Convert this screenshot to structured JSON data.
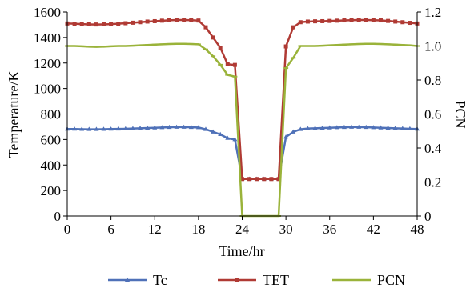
{
  "chart_data": {
    "type": "line",
    "xlabel": "Time/hr",
    "ylabel": "Temperature/K",
    "y2label": "PCN",
    "xlim": [
      0,
      48
    ],
    "ylim": [
      0,
      1600
    ],
    "y2lim": [
      0,
      1.2
    ],
    "x_ticks": [
      0,
      6,
      12,
      18,
      24,
      30,
      36,
      42,
      48
    ],
    "y_ticks": [
      0,
      200,
      400,
      600,
      800,
      1000,
      1200,
      1400,
      1600
    ],
    "y2_ticks": [
      "0",
      "0.2",
      "0.4",
      "0.6",
      "0.8",
      "1.0",
      "1.2"
    ],
    "legend_position": "bottom",
    "grid": false,
    "x": [
      0,
      1,
      2,
      3,
      4,
      5,
      6,
      7,
      8,
      9,
      10,
      11,
      12,
      13,
      14,
      15,
      16,
      17,
      18,
      19,
      20,
      21,
      22,
      23,
      24,
      25,
      26,
      27,
      28,
      29,
      30,
      31,
      32,
      33,
      34,
      35,
      36,
      37,
      38,
      39,
      40,
      41,
      42,
      43,
      44,
      45,
      46,
      47,
      48
    ],
    "series": [
      {
        "name": "Tc",
        "axis": "left",
        "color": "#4f71b8",
        "marker": "triangle",
        "values": [
          682,
          682,
          681,
          680,
          680,
          681,
          682,
          683,
          684,
          686,
          688,
          690,
          692,
          694,
          696,
          697,
          697,
          696,
          694,
          680,
          660,
          640,
          610,
          600,
          290,
          290,
          290,
          290,
          290,
          290,
          620,
          660,
          680,
          686,
          688,
          690,
          692,
          694,
          696,
          697,
          697,
          696,
          694,
          692,
          690,
          688,
          686,
          684,
          682
        ]
      },
      {
        "name": "TET",
        "axis": "left",
        "color": "#b03a34",
        "marker": "square",
        "values": [
          1510,
          1508,
          1505,
          1503,
          1502,
          1503,
          1505,
          1508,
          1512,
          1516,
          1520,
          1525,
          1528,
          1532,
          1535,
          1537,
          1537,
          1536,
          1533,
          1480,
          1400,
          1320,
          1190,
          1185,
          290,
          290,
          290,
          290,
          290,
          290,
          1330,
          1480,
          1520,
          1525,
          1527,
          1528,
          1530,
          1532,
          1534,
          1536,
          1537,
          1537,
          1536,
          1534,
          1530,
          1525,
          1520,
          1515,
          1510
        ]
      },
      {
        "name": "PCN",
        "axis": "right",
        "color": "#9ab33a",
        "marker": "dash",
        "values": [
          1.0,
          1.0,
          0.998,
          0.996,
          0.995,
          0.996,
          0.998,
          1.0,
          1.0,
          1.002,
          1.004,
          1.006,
          1.008,
          1.01,
          1.012,
          1.013,
          1.013,
          1.012,
          1.01,
          0.98,
          0.94,
          0.89,
          0.83,
          0.82,
          0,
          0,
          0,
          0,
          0,
          0,
          0.87,
          0.93,
          1.0,
          1.0,
          1.0,
          1.002,
          1.004,
          1.006,
          1.008,
          1.01,
          1.012,
          1.013,
          1.013,
          1.012,
          1.01,
          1.008,
          1.006,
          1.004,
          1.0
        ]
      }
    ]
  }
}
